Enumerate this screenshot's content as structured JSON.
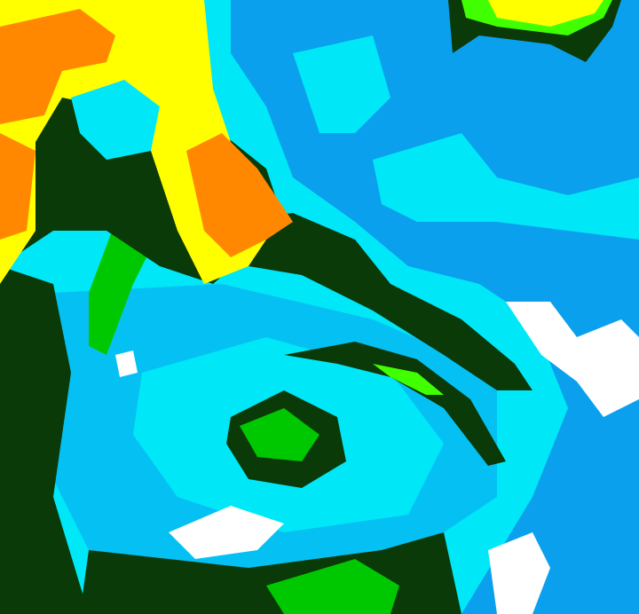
{
  "image": {
    "kind": "false-color satellite cloud imagery",
    "palette": {
      "cyan": "#00e8f8",
      "blue": "#0aa0ee",
      "dark_green": "#0a3a08",
      "green": "#00c800",
      "lime": "#40ff00",
      "yellow": "#ffff00",
      "orange": "#ff8800",
      "white": "#ffffff"
    }
  }
}
